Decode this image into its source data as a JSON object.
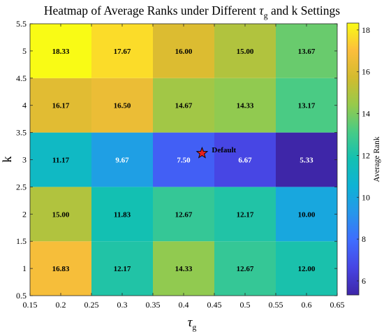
{
  "chart_data": {
    "type": "heatmap",
    "title_prefix": "Heatmap of Average Ranks under Different ",
    "title_tau": "τ",
    "title_sub": "g",
    "title_suffix": " and k Settings",
    "xlabel_symbol": "τ",
    "xlabel_sub": "g",
    "ylabel": "k",
    "colorbar_label": "Average Rank",
    "x": [
      0.2,
      0.3,
      0.4,
      0.5,
      0.6
    ],
    "y": [
      1,
      2,
      3,
      4,
      5
    ],
    "xlim": [
      0.15,
      0.65
    ],
    "ylim": [
      0.5,
      5.5
    ],
    "x_ticks": [
      "0.15",
      "0.2",
      "0.25",
      "0.3",
      "0.35",
      "0.4",
      "0.45",
      "0.5",
      "0.55",
      "0.6",
      "0.65"
    ],
    "y_ticks": [
      "0.5",
      "1",
      "1.5",
      "2",
      "2.5",
      "3",
      "3.5",
      "4",
      "4.5",
      "5",
      "5.5"
    ],
    "values": [
      [
        16.83,
        12.17,
        14.33,
        12.67,
        12.0
      ],
      [
        15.0,
        11.83,
        12.67,
        12.17,
        10.0
      ],
      [
        11.17,
        9.67,
        7.5,
        6.67,
        5.33
      ],
      [
        16.17,
        16.5,
        14.67,
        14.33,
        13.17
      ],
      [
        18.33,
        17.67,
        16.0,
        15.0,
        13.67
      ]
    ],
    "cell_labels": [
      [
        "16.83",
        "12.17",
        "14.33",
        "12.67",
        "12.00"
      ],
      [
        "15.00",
        "11.83",
        "12.67",
        "12.17",
        "10.00"
      ],
      [
        "11.17",
        "9.67",
        "7.50",
        "6.67",
        "5.33"
      ],
      [
        "16.17",
        "16.50",
        "14.67",
        "14.33",
        "13.17"
      ],
      [
        "18.33",
        "17.67",
        "16.00",
        "15.00",
        "13.67"
      ]
    ],
    "colorbar_range": [
      5.33,
      18.33
    ],
    "colorbar_ticks": [
      "6",
      "8",
      "10",
      "12",
      "14",
      "16",
      "18"
    ],
    "colormap": "parula",
    "marker": {
      "label": "Default",
      "x": 0.43,
      "y": 3.12,
      "color": "#e8201e"
    },
    "grid": false
  }
}
